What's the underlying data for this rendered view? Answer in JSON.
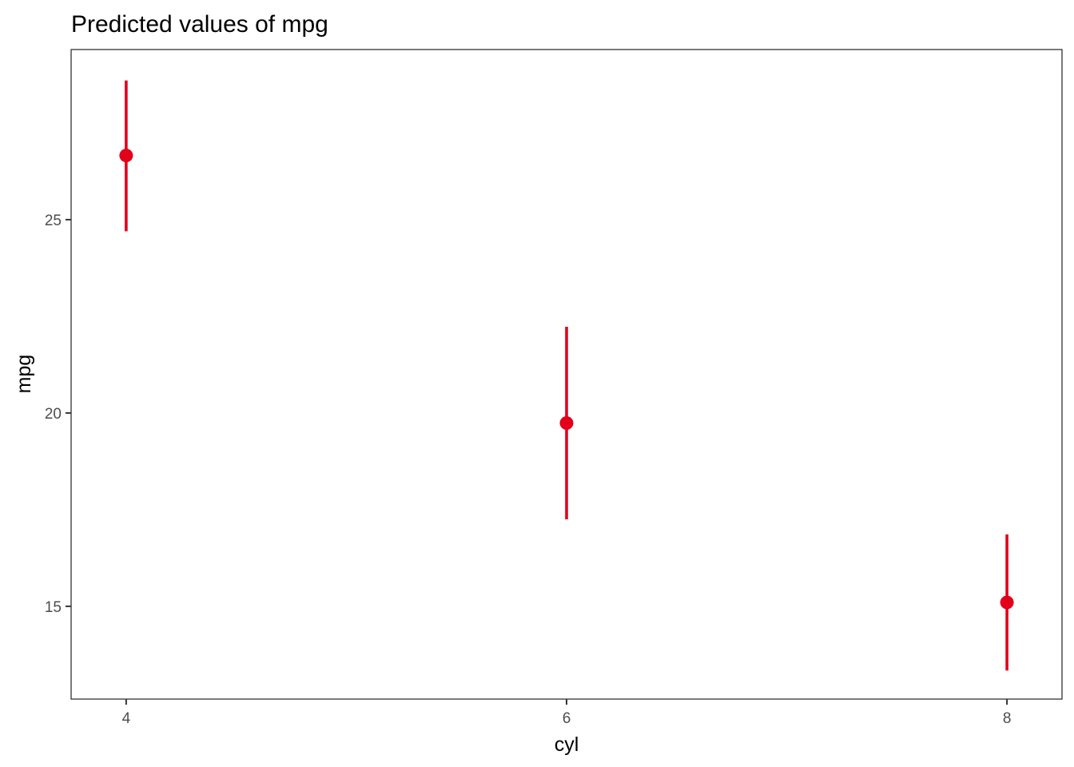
{
  "chart_data": {
    "type": "scatter",
    "title": "Predicted values of mpg",
    "xlabel": "cyl",
    "ylabel": "mpg",
    "x_ticks": [
      4,
      6,
      8
    ],
    "y_ticks": [
      15,
      20,
      25
    ],
    "xlim": [
      3.75,
      8.25
    ],
    "ylim": [
      12.6,
      29.4
    ],
    "grid": false,
    "legend": "none",
    "color": "#e2001a",
    "series": [
      {
        "points": [
          {
            "x": 4,
            "y": 26.66,
            "ci_low": 24.7,
            "ci_high": 28.6
          },
          {
            "x": 6,
            "y": 19.74,
            "ci_low": 17.25,
            "ci_high": 22.23
          },
          {
            "x": 8,
            "y": 15.1,
            "ci_low": 13.34,
            "ci_high": 16.86
          }
        ]
      }
    ]
  }
}
